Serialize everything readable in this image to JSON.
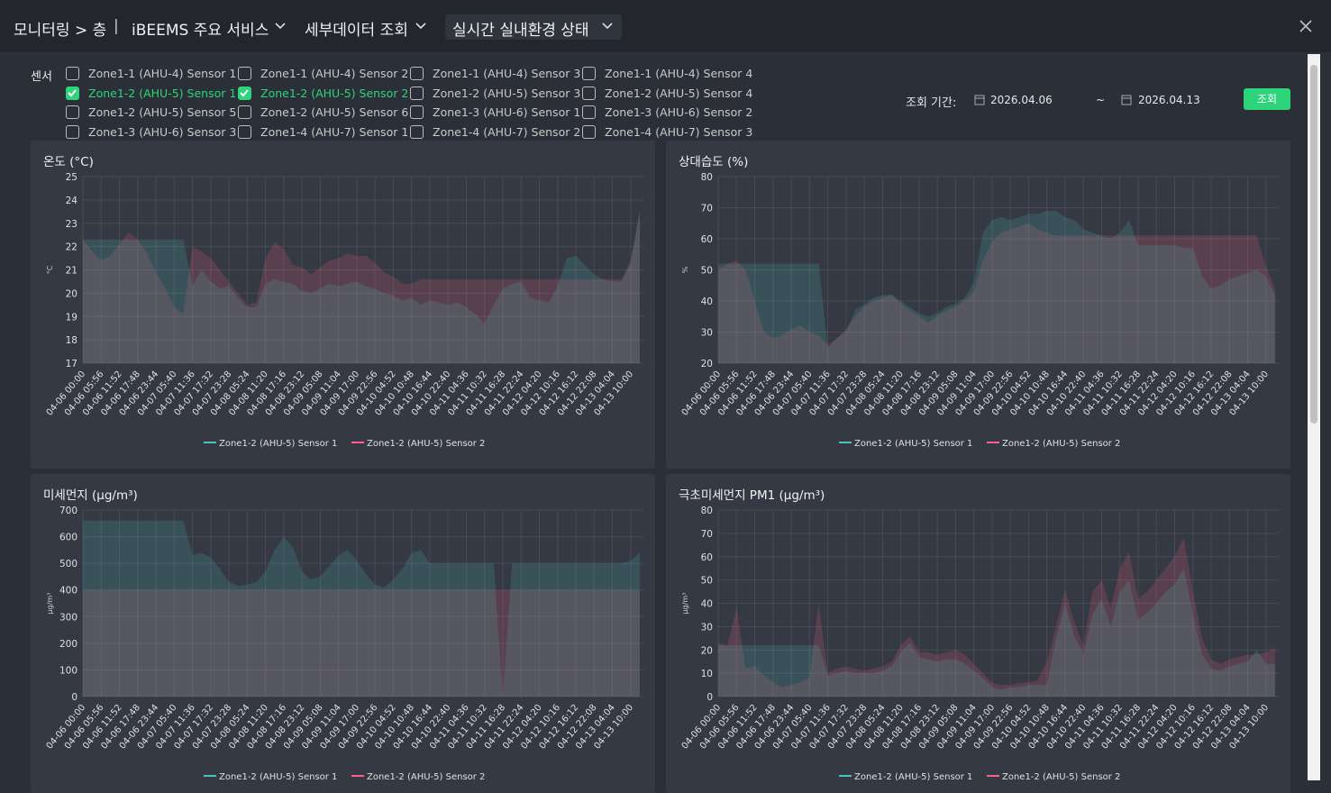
{
  "header": {
    "breadcrumb": "모니터링 > 층",
    "separator": "|",
    "menus": [
      "iBEEMS 주요 서비스",
      "세부데이터 조회",
      "실시간 실내환경 상태"
    ]
  },
  "sensors": {
    "label": "센서",
    "items": [
      {
        "name": "Zone1-1 (AHU-4) Sensor 1",
        "checked": false
      },
      {
        "name": "Zone1-1 (AHU-4) Sensor 2",
        "checked": false
      },
      {
        "name": "Zone1-1 (AHU-4) Sensor 3",
        "checked": false
      },
      {
        "name": "Zone1-1 (AHU-4) Sensor 4",
        "checked": false
      },
      {
        "name": "Zone1-2 (AHU-5) Sensor 1",
        "checked": true
      },
      {
        "name": "Zone1-2 (AHU-5) Sensor 2",
        "checked": true
      },
      {
        "name": "Zone1-2 (AHU-5) Sensor 3",
        "checked": false
      },
      {
        "name": "Zone1-2 (AHU-5) Sensor 4",
        "checked": false
      },
      {
        "name": "Zone1-2 (AHU-5) Sensor 5",
        "checked": false
      },
      {
        "name": "Zone1-2 (AHU-5) Sensor 6",
        "checked": false
      },
      {
        "name": "Zone1-3 (AHU-6) Sensor 1",
        "checked": false
      },
      {
        "name": "Zone1-3 (AHU-6) Sensor 2",
        "checked": false
      },
      {
        "name": "Zone1-3 (AHU-6) Sensor 3",
        "checked": false
      },
      {
        "name": "Zone1-4 (AHU-7) Sensor 1",
        "checked": false
      },
      {
        "name": "Zone1-4 (AHU-7) Sensor 2",
        "checked": false
      },
      {
        "name": "Zone1-4 (AHU-7) Sensor 3",
        "checked": false
      }
    ]
  },
  "period": {
    "label": "조회 기간:",
    "start": "2026.04.06",
    "tilde": "~",
    "end": "2026.04.13",
    "button": "조회"
  },
  "chart_data": [
    {
      "type": "line",
      "title": "온도 (°C)",
      "y_label": "°C",
      "grid": true,
      "legend": "bottom",
      "ylim": [
        17,
        25
      ],
      "yticks": [
        17,
        18,
        19,
        20,
        21,
        22,
        23,
        24,
        25
      ],
      "categories": [
        "04-06 00:00",
        null,
        "04-06 05:56",
        null,
        "04-06 11:52",
        null,
        "04-06 17:48",
        null,
        "04-06 23:44",
        null,
        "04-07 05:40",
        null,
        "04-07 11:36",
        null,
        "04-07 17:32",
        null,
        "04-07 23:28",
        null,
        "04-08 05:24",
        null,
        "04-08 11:20",
        null,
        "04-08 17:16",
        null,
        "04-08 23:12",
        null,
        "04-09 05:08",
        null,
        "04-09 11:04",
        null,
        "04-09 17:00",
        null,
        "04-09 22:56",
        null,
        "04-10 04:52",
        null,
        "04-10 10:48",
        null,
        "04-10 16:44",
        null,
        "04-10 22:40",
        null,
        "04-11 04:36",
        null,
        "04-11 10:32",
        null,
        "04-11 16:28",
        null,
        "04-11 22:24",
        null,
        "04-12 04:20",
        null,
        "04-12 10:16",
        null,
        "04-12 16:12",
        null,
        "04-12 22:08",
        null,
        "04-13 04:04",
        null,
        "04-13 10:00",
        null
      ],
      "series": [
        {
          "name": "Zone1-2 (AHU-5) Sensor 1",
          "color": "#4bc0c0",
          "values": [
            22.3,
            22.3,
            22.3,
            22.3,
            22.3,
            22.3,
            22.3,
            22.3,
            22.3,
            22.3,
            22.3,
            22.3,
            20.3,
            21,
            20.5,
            20.2,
            20.3,
            19.8,
            19.4,
            19.4,
            20.4,
            20.6,
            20.5,
            20.4,
            20.1,
            20,
            20.2,
            20.4,
            20.3,
            20.4,
            20.5,
            20.3,
            20.2,
            20,
            19.9,
            19.7,
            19.8,
            19.5,
            19.7,
            19.6,
            19.5,
            19.6,
            19.4,
            19.1,
            18.7,
            19.5,
            20.2,
            20.4,
            20.5,
            19.8,
            19.7,
            19.6,
            20.3,
            21.5,
            21.6,
            21.2,
            20.8,
            20.6,
            20.5,
            20.5,
            21.3,
            23.6
          ]
        },
        {
          "name": "Zone1-2 (AHU-5) Sensor 2",
          "color": "#ff6384",
          "values": [
            22.3,
            21.8,
            21.4,
            21.6,
            22.1,
            22.6,
            22.3,
            21.7,
            20.9,
            20.2,
            19.4,
            19.1,
            22,
            21.8,
            21.5,
            21,
            20.5,
            20,
            19.5,
            19.6,
            21.5,
            22.2,
            21.9,
            21.2,
            21.1,
            20.8,
            21.1,
            21.4,
            21.5,
            21.7,
            21.6,
            21.6,
            21.3,
            20.9,
            20.7,
            20.4,
            20.4,
            20.6,
            20.6,
            20.6,
            20.6,
            20.6,
            20.6,
            20.6,
            20.6,
            20.6,
            20.6,
            20.6,
            20.6,
            20.6,
            20.6,
            20.6,
            20.6,
            20.6,
            20.6,
            20.6,
            20.6,
            20.6,
            20.6,
            20.6,
            21.4,
            23.4
          ]
        }
      ]
    },
    {
      "type": "line",
      "title": "상대습도 (%)",
      "y_label": "%",
      "grid": true,
      "legend": "bottom",
      "ylim": [
        20,
        80
      ],
      "yticks": [
        20,
        30,
        40,
        50,
        60,
        70,
        80
      ],
      "categories": [
        "04-06 00:00",
        null,
        "04-06 05:56",
        null,
        "04-06 11:52",
        null,
        "04-06 17:48",
        null,
        "04-06 23:44",
        null,
        "04-07 05:40",
        null,
        "04-07 11:36",
        null,
        "04-07 17:32",
        null,
        "04-07 23:28",
        null,
        "04-08 05:24",
        null,
        "04-08 11:20",
        null,
        "04-08 17:16",
        null,
        "04-08 23:12",
        null,
        "04-09 05:08",
        null,
        "04-09 11:04",
        null,
        "04-09 17:00",
        null,
        "04-09 22:56",
        null,
        "04-10 04:52",
        null,
        "04-10 10:48",
        null,
        "04-10 16:44",
        null,
        "04-10 22:40",
        null,
        "04-11 04:36",
        null,
        "04-11 10:32",
        null,
        "04-11 16:28",
        null,
        "04-11 22:24",
        null,
        "04-12 04:20",
        null,
        "04-12 10:16",
        null,
        "04-12 16:12",
        null,
        "04-12 22:08",
        null,
        "04-13 04:04",
        null,
        "04-13 10:00",
        null
      ],
      "series": [
        {
          "name": "Zone1-2 (AHU-5) Sensor 1",
          "color": "#4bc0c0",
          "values": [
            52,
            52,
            52,
            52,
            52,
            52,
            52,
            52,
            52,
            52,
            52,
            52,
            25,
            28,
            30,
            37,
            39,
            41,
            42,
            42,
            40,
            38,
            36,
            35,
            36,
            38,
            39,
            41,
            46,
            62,
            66,
            67,
            66,
            67,
            68,
            68,
            69,
            69,
            67,
            66,
            63,
            62,
            61,
            60,
            62,
            66,
            58,
            58,
            58,
            58,
            58,
            57,
            57,
            48,
            44,
            45,
            47,
            48,
            49,
            50,
            48,
            42
          ]
        },
        {
          "name": "Zone1-2 (AHU-5) Sensor 2",
          "color": "#ff6384",
          "values": [
            50,
            52,
            53,
            50,
            40,
            30,
            28,
            29,
            31,
            32,
            30,
            29,
            26,
            28,
            31,
            35,
            38,
            40,
            41,
            42,
            39,
            37,
            35,
            33,
            35,
            37,
            38,
            40,
            43,
            53,
            59,
            62,
            63,
            64,
            65,
            63,
            62,
            61,
            61,
            61,
            61,
            61,
            61,
            61,
            61,
            61,
            61,
            61,
            61,
            61,
            61,
            61,
            61,
            61,
            61,
            61,
            61,
            61,
            61,
            61,
            51,
            44
          ]
        }
      ]
    },
    {
      "type": "line",
      "title": "미세먼지 (μg/m³)",
      "y_label": "μg/m³",
      "grid": true,
      "legend": "bottom",
      "ylim": [
        0,
        700
      ],
      "yticks": [
        0,
        100,
        200,
        300,
        400,
        500,
        600,
        700
      ],
      "categories": [
        "04-06 00:00",
        null,
        "04-06 05:56",
        null,
        "04-06 11:52",
        null,
        "04-06 17:48",
        null,
        "04-06 23:44",
        null,
        "04-07 05:40",
        null,
        "04-07 11:36",
        null,
        "04-07 17:32",
        null,
        "04-07 23:28",
        null,
        "04-08 05:24",
        null,
        "04-08 11:20",
        null,
        "04-08 17:16",
        null,
        "04-08 23:12",
        null,
        "04-09 05:08",
        null,
        "04-09 11:04",
        null,
        "04-09 17:00",
        null,
        "04-09 22:56",
        null,
        "04-10 04:52",
        null,
        "04-10 10:48",
        null,
        "04-10 16:44",
        null,
        "04-10 22:40",
        null,
        "04-11 04:36",
        null,
        "04-11 10:32",
        null,
        "04-11 16:28",
        null,
        "04-11 22:24",
        null,
        "04-12 04:20",
        null,
        "04-12 10:16",
        null,
        "04-12 16:12",
        null,
        "04-12 22:08",
        null,
        "04-13 04:04",
        null,
        "04-13 10:00",
        null
      ],
      "series": [
        {
          "name": "Zone1-2 (AHU-5) Sensor 1",
          "color": "#4bc0c0",
          "values": [
            660,
            660,
            660,
            660,
            660,
            660,
            660,
            660,
            660,
            660,
            660,
            660,
            530,
            540,
            520,
            480,
            430,
            415,
            420,
            430,
            470,
            550,
            600,
            560,
            470,
            440,
            450,
            490,
            530,
            550,
            510,
            460,
            420,
            410,
            440,
            480,
            540,
            550,
            500,
            500,
            500,
            500,
            500,
            500,
            500,
            500,
            0,
            500,
            500,
            500,
            500,
            500,
            500,
            500,
            500,
            500,
            500,
            500,
            500,
            500,
            510,
            540
          ]
        },
        {
          "name": "Zone1-2 (AHU-5) Sensor 2",
          "color": "#ff6384",
          "values": [
            400,
            400,
            400,
            400,
            400,
            400,
            400,
            400,
            400,
            400,
            400,
            400,
            400,
            400,
            400,
            400,
            400,
            400,
            400,
            400,
            400,
            400,
            400,
            400,
            400,
            400,
            400,
            400,
            400,
            400,
            400,
            400,
            400,
            400,
            400,
            400,
            400,
            400,
            400,
            400,
            400,
            400,
            400,
            400,
            400,
            400,
            400,
            400,
            400,
            400,
            400,
            400,
            400,
            400,
            400,
            400,
            400,
            400,
            400,
            400,
            400,
            400
          ]
        }
      ]
    },
    {
      "type": "line",
      "title": "극초미세먼지 PM1 (μg/m³)",
      "y_label": "μg/m³",
      "grid": true,
      "legend": "bottom",
      "ylim": [
        0,
        80
      ],
      "yticks": [
        0,
        10,
        20,
        30,
        40,
        50,
        60,
        70,
        80
      ],
      "categories": [
        "04-06 00:00",
        null,
        "04-06 05:56",
        null,
        "04-06 11:52",
        null,
        "04-06 17:48",
        null,
        "04-06 23:44",
        null,
        "04-07 05:40",
        null,
        "04-07 11:36",
        null,
        "04-07 17:32",
        null,
        "04-07 23:28",
        null,
        "04-08 05:24",
        null,
        "04-08 11:20",
        null,
        "04-08 17:16",
        null,
        "04-08 23:12",
        null,
        "04-09 05:08",
        null,
        "04-09 11:04",
        null,
        "04-09 17:00",
        null,
        "04-09 22:56",
        null,
        "04-10 04:52",
        null,
        "04-10 10:48",
        null,
        "04-10 16:44",
        null,
        "04-10 22:40",
        null,
        "04-11 04:36",
        null,
        "04-11 10:32",
        null,
        "04-11 16:28",
        null,
        "04-11 22:24",
        null,
        "04-12 04:20",
        null,
        "04-12 10:16",
        null,
        "04-12 16:12",
        null,
        "04-12 22:08",
        null,
        "04-13 04:04",
        null,
        "04-13 10:00",
        null
      ],
      "series": [
        {
          "name": "Zone1-2 (AHU-5) Sensor 1",
          "color": "#4bc0c0",
          "values": [
            22,
            22,
            22,
            22,
            22,
            22,
            22,
            22,
            22,
            22,
            22,
            22,
            9,
            10,
            11,
            10,
            10,
            10,
            11,
            13,
            19,
            23,
            17,
            16,
            15,
            16,
            16,
            14,
            11,
            8,
            4,
            3,
            4,
            4,
            5,
            5,
            5,
            25,
            40,
            26,
            18,
            35,
            42,
            30,
            45,
            50,
            33,
            36,
            40,
            45,
            48,
            55,
            35,
            18,
            12,
            11,
            13,
            14,
            15,
            20,
            14,
            14
          ]
        },
        {
          "name": "Zone1-2 (AHU-5) Sensor 2",
          "color": "#ff6384",
          "values": [
            23,
            22,
            38,
            12,
            13,
            9,
            6,
            4,
            5,
            6,
            8,
            40,
            10,
            12,
            13,
            12,
            11,
            12,
            13,
            15,
            22,
            26,
            19,
            19,
            18,
            19,
            20,
            18,
            14,
            10,
            6,
            5,
            5,
            6,
            6,
            7,
            15,
            30,
            46,
            32,
            22,
            45,
            50,
            38,
            55,
            62,
            42,
            45,
            50,
            55,
            60,
            68,
            45,
            25,
            16,
            14,
            16,
            17,
            18,
            18,
            19,
            21
          ]
        }
      ]
    }
  ]
}
